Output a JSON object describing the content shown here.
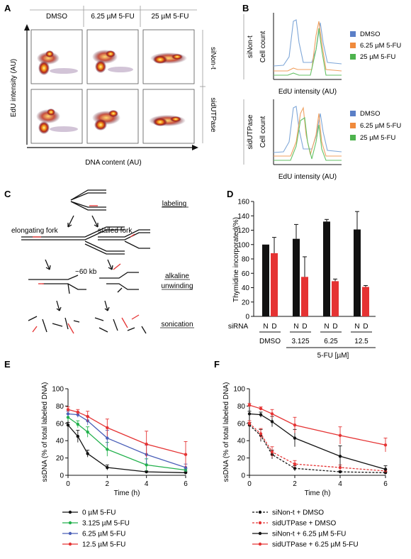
{
  "panel_labels": {
    "a": "A",
    "b": "B",
    "c": "C",
    "d": "D",
    "e": "E",
    "f": "F"
  },
  "colors": {
    "black": "#111111",
    "red": "#e53333",
    "green": "#22b14c",
    "blue": "#4a5fb8",
    "hist_blue": "#7fa7d8",
    "hist_orange": "#f0a060",
    "hist_green": "#66c266",
    "legend_blue": "#5b7fc7",
    "legend_orange": "#f08a3c",
    "legend_green": "#4db34d"
  },
  "panel_a": {
    "columns": [
      "DMSO",
      "6.25 µM 5-FU",
      "25 µM 5-FU"
    ],
    "rows": [
      "siNon-t",
      "sidUTPase"
    ],
    "ylabel": "EdU intensity (AU)",
    "xlabel": "DNA content (AU)"
  },
  "panel_b": {
    "top": {
      "row": "siNon-t",
      "ylabel": "Cell count",
      "xlabel": "EdU intensity (AU)"
    },
    "bottom": {
      "row": "sidUTPase",
      "ylabel": "Cell count",
      "xlabel": "EdU intensity (AU)"
    },
    "legend": [
      "DMSO",
      "6.25 µM 5-FU",
      "25 µM 5-FU"
    ]
  },
  "panel_c": {
    "labeling": "labeling",
    "elongating": "elongating fork",
    "stalled": "stalled fork",
    "distance": "~60 kb",
    "alkaline1": "alkaline",
    "alkaline2": "unwinding",
    "sonication": "sonication"
  },
  "chart_data": [
    {
      "id": "D",
      "type": "bar",
      "ylabel": "Thymidine incorporated(%)",
      "ylim": [
        0,
        160
      ],
      "yticks": [
        0,
        20,
        40,
        60,
        80,
        100,
        120,
        140,
        160
      ],
      "row_label": "siRNA",
      "bar_labels": [
        "N",
        "D",
        "N",
        "D",
        "N",
        "D",
        "N",
        "D"
      ],
      "group_labels": [
        "DMSO",
        "3.125",
        "6.25",
        "12.5"
      ],
      "xlabel": "5-FU  [µM]",
      "series": [
        {
          "name": "N",
          "color": "#111111",
          "values": [
            100,
            108,
            132,
            121
          ],
          "errors": [
            0,
            20,
            3,
            25
          ]
        },
        {
          "name": "D",
          "color": "#e53333",
          "values": [
            88,
            55,
            49,
            41
          ],
          "errors": [
            22,
            28,
            3,
            2
          ]
        }
      ]
    },
    {
      "id": "E",
      "type": "line",
      "ylabel": "ssDNA (% of total labeled DNA)",
      "xlabel": "Time (h)",
      "xlim": [
        0,
        6
      ],
      "ylim": [
        0,
        100
      ],
      "xticks": [
        0,
        2,
        4,
        6
      ],
      "yticks": [
        0,
        20,
        40,
        60,
        80,
        100
      ],
      "x": [
        0,
        0.5,
        1,
        2,
        4,
        6
      ],
      "series": [
        {
          "name": "0 µM 5-FU",
          "color": "#111111",
          "dash": false,
          "values": [
            58,
            45,
            25,
            9,
            4,
            3
          ],
          "errors": [
            3,
            7,
            4,
            3,
            1,
            1
          ]
        },
        {
          "name": "3.125 µM 5-FU",
          "color": "#22b14c",
          "dash": false,
          "values": [
            67,
            59,
            50,
            30,
            12,
            6
          ],
          "errors": [
            4,
            4,
            6,
            8,
            7,
            2
          ]
        },
        {
          "name": "6.25 µM 5-FU",
          "color": "#4a5fb8",
          "dash": false,
          "values": [
            71,
            70,
            63,
            43,
            24,
            9
          ],
          "errors": [
            3,
            3,
            5,
            9,
            11,
            4
          ]
        },
        {
          "name": "12.5 µM 5-FU",
          "color": "#e53333",
          "dash": false,
          "values": [
            76,
            73,
            68,
            55,
            36,
            24
          ],
          "errors": [
            3,
            3,
            6,
            10,
            15,
            15
          ]
        }
      ]
    },
    {
      "id": "F",
      "type": "line",
      "ylabel": "ssDNA (% of total labeled DNA)",
      "xlabel": "Time (h)",
      "xlim": [
        0,
        6
      ],
      "ylim": [
        0,
        100
      ],
      "xticks": [
        0,
        2,
        4,
        6
      ],
      "yticks": [
        0,
        20,
        40,
        60,
        80,
        100
      ],
      "x": [
        0,
        0.5,
        1,
        2,
        4,
        6
      ],
      "series": [
        {
          "name": "siNon-t + DMSO",
          "color": "#111111",
          "dash": true,
          "values": [
            58,
            46,
            24,
            8,
            4,
            3
          ],
          "errors": [
            3,
            7,
            5,
            3,
            1,
            1
          ]
        },
        {
          "name": "sidUTPase + DMSO",
          "color": "#e53333",
          "dash": true,
          "values": [
            60,
            48,
            27,
            13,
            9,
            5
          ],
          "errors": [
            3,
            6,
            6,
            4,
            3,
            2
          ]
        },
        {
          "name": "siNon-t + 6.25 µM 5-FU",
          "color": "#111111",
          "dash": false,
          "values": [
            71,
            70,
            62,
            43,
            22,
            7
          ],
          "errors": [
            3,
            3,
            6,
            10,
            12,
            4
          ]
        },
        {
          "name": "sidUTPase + 6.25 µM 5-FU",
          "color": "#e53333",
          "dash": false,
          "values": [
            81,
            77,
            71,
            58,
            46,
            35
          ],
          "errors": [
            2,
            2,
            5,
            9,
            10,
            8
          ]
        }
      ]
    }
  ]
}
